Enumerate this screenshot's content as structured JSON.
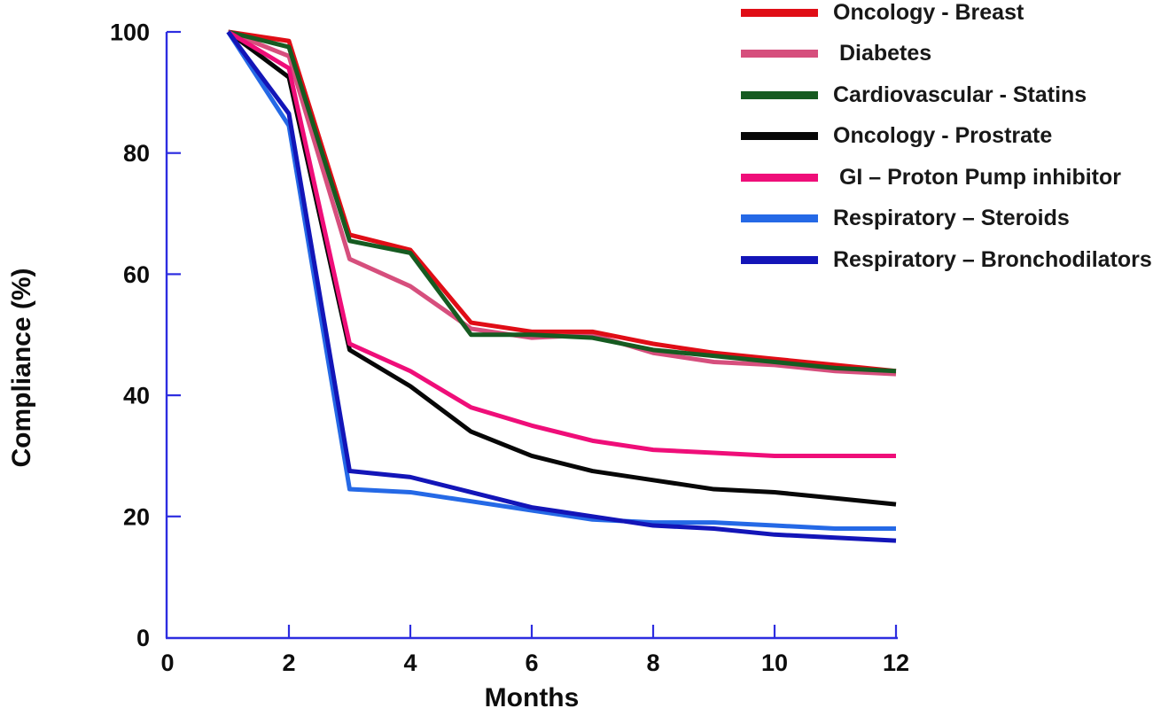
{
  "figure": {
    "x_axis_title": "Months",
    "y_axis_title": "Compliance (%)"
  },
  "chart_data": {
    "type": "line",
    "title": "",
    "xlabel": "Months",
    "ylabel": "Compliance (%)",
    "xlim": [
      0,
      12
    ],
    "ylim": [
      0,
      100
    ],
    "x_ticks": [
      0,
      2,
      4,
      6,
      8,
      10,
      12
    ],
    "y_ticks": [
      0,
      20,
      40,
      60,
      80,
      100
    ],
    "grid": false,
    "legend_position": "top-right",
    "axis_color": "#2d2de0",
    "tick_label_color": "#0d0d0d",
    "x": [
      1,
      2,
      3,
      4,
      5,
      6,
      7,
      8,
      9,
      10,
      11,
      12
    ],
    "series": [
      {
        "name": "Oncology - Breast",
        "color": "#e00d16",
        "values": [
          100,
          98.5,
          66.5,
          64,
          52,
          50.5,
          50.5,
          48.5,
          47,
          46,
          45,
          44
        ]
      },
      {
        "name": " Diabetes",
        "color": "#d64f7d",
        "values": [
          100,
          96,
          62.5,
          58,
          51,
          49.5,
          50,
          47,
          45.5,
          45,
          44,
          43.5
        ]
      },
      {
        "name": "Cardiovascular - Statins",
        "color": "#165b21",
        "values": [
          100,
          97.5,
          65.5,
          63.5,
          50,
          50,
          49.5,
          47.5,
          46.5,
          45.5,
          44.5,
          44
        ]
      },
      {
        "name": "Oncology - Prostrate",
        "color": "#070707",
        "values": [
          100,
          92.5,
          47.5,
          41.5,
          34,
          30,
          27.5,
          26,
          24.5,
          24,
          23,
          22
        ]
      },
      {
        "name": " GI – Proton Pump inhibitor",
        "color": "#ef0e79",
        "values": [
          100,
          94,
          48.5,
          44,
          38,
          35,
          32.5,
          31,
          30.5,
          30,
          30,
          30
        ]
      },
      {
        "name": "Respiratory – Steroids",
        "color": "#2569e6",
        "values": [
          100,
          84.5,
          24.5,
          24,
          22.5,
          21,
          19.5,
          19,
          19,
          18.5,
          18,
          18
        ]
      },
      {
        "name": "Respiratory – Bronchodilators",
        "color": "#1315b8",
        "values": [
          100,
          86.5,
          27.5,
          26.5,
          24,
          21.5,
          20,
          18.5,
          18,
          17,
          16.5,
          16
        ]
      }
    ]
  }
}
